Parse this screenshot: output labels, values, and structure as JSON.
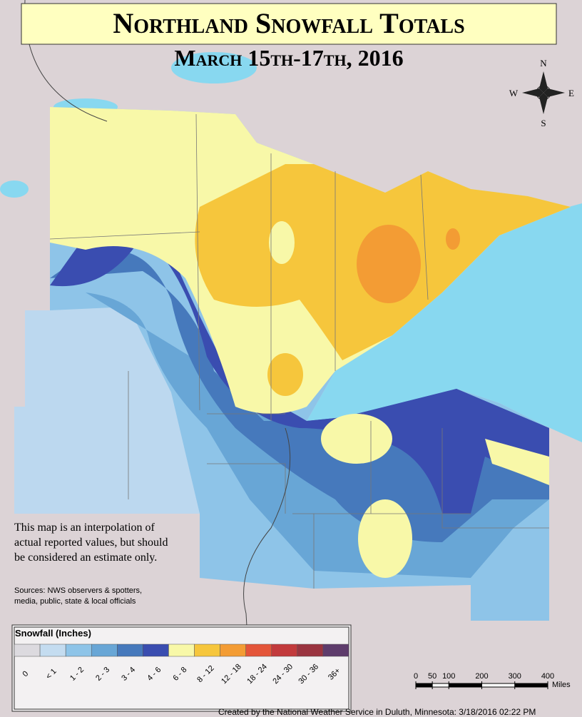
{
  "header": {
    "title": "Northland Snowfall Totals",
    "subtitle": "March 15th-17th, 2016"
  },
  "compass": {
    "n": "N",
    "s": "S",
    "e": "E",
    "w": "W"
  },
  "disclaimer": [
    "This map is an interpolation of",
    "actual reported values, but should",
    "be considered an estimate only."
  ],
  "sources": [
    "Sources: NWS observers & spotters,",
    "media, public, state & local officials"
  ],
  "legend": {
    "title": "Snowfall (Inches)",
    "items": [
      {
        "label": "0",
        "color": "#dcdadf"
      },
      {
        "label": "< 1",
        "color": "#c4dcf0"
      },
      {
        "label": "1 - 2",
        "color": "#8ec4e8"
      },
      {
        "label": "2 - 3",
        "color": "#68a6d6"
      },
      {
        "label": "3 - 4",
        "color": "#4679bc"
      },
      {
        "label": "4 - 6",
        "color": "#3a4db0"
      },
      {
        "label": "6 - 8",
        "color": "#f8f8a8"
      },
      {
        "label": "8 - 12",
        "color": "#f6c63c"
      },
      {
        "label": "12 - 18",
        "color": "#f39c34"
      },
      {
        "label": "18 - 24",
        "color": "#e4553a"
      },
      {
        "label": "24 - 30",
        "color": "#c23a3c"
      },
      {
        "label": "30 - 36",
        "color": "#9a3440"
      },
      {
        "label": "36+",
        "color": "#5e3c6c"
      }
    ]
  },
  "scale_bar": {
    "ticks": [
      0,
      50,
      100,
      200,
      300,
      400
    ],
    "unit": "Miles"
  },
  "footer": "Created by the National Weather Service in Duluth, Minnesota: 3/18/2016 02:22 PM"
}
